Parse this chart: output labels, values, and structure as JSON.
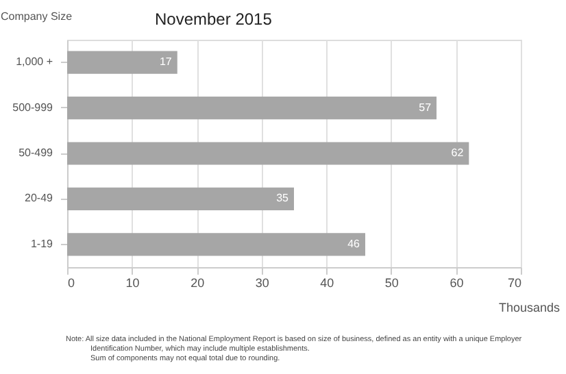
{
  "chart_data": {
    "type": "bar",
    "orientation": "horizontal",
    "title": "November 2015",
    "ylabel": "Company Size",
    "xlabel": "Thousands",
    "categories": [
      "1,000 +",
      "500-999",
      "50-499",
      "20-49",
      "1-19"
    ],
    "values": [
      17,
      57,
      62,
      35,
      46
    ],
    "color": "#a6a6a6",
    "data_labels": true,
    "xlim": [
      0,
      70
    ],
    "xticks": [
      0,
      10,
      20,
      30,
      40,
      50,
      60,
      70
    ],
    "grid": "x",
    "annotations": [
      "Note: All size data included in the National Employment Report is based on size of business, defined as an entity with a unique Employer",
      "Identification Number, which may include multiple establishments.",
      "Sum of components may not equal total due to rounding."
    ]
  }
}
